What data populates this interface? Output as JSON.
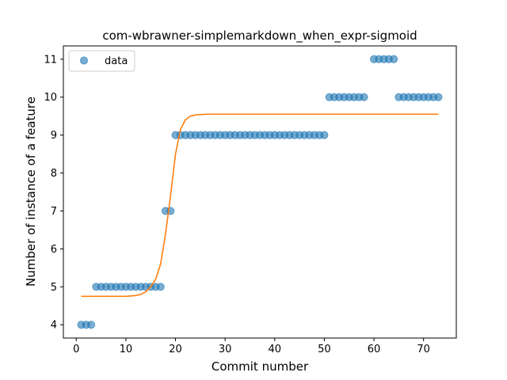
{
  "chart_data": {
    "type": "scatter",
    "title": "com-wbrawner-simplemarkdown_when_expr-sigmoid",
    "xlabel": "Commit number",
    "ylabel": "Number of instance of a feature",
    "xlim": [
      -2.6,
      76.6
    ],
    "ylim": [
      3.65,
      11.35
    ],
    "xticks": [
      0,
      10,
      20,
      30,
      40,
      50,
      60,
      70
    ],
    "yticks": [
      4,
      5,
      6,
      7,
      8,
      9,
      10,
      11
    ],
    "grid": false,
    "legend": {
      "placement": "top-left",
      "entries": [
        "data"
      ]
    },
    "colors": {
      "data": "#1f77b4",
      "fit": "#ff7f0e"
    },
    "series": [
      {
        "name": "data",
        "kind": "scatter",
        "x": [
          1,
          2,
          3,
          4,
          5,
          6,
          7,
          8,
          9,
          10,
          11,
          12,
          13,
          14,
          15,
          16,
          17,
          18,
          19,
          20,
          21,
          22,
          23,
          24,
          25,
          26,
          27,
          28,
          29,
          30,
          31,
          32,
          33,
          34,
          35,
          36,
          37,
          38,
          39,
          40,
          41,
          42,
          43,
          44,
          45,
          46,
          47,
          48,
          49,
          50,
          51,
          52,
          53,
          54,
          55,
          56,
          57,
          58,
          60,
          61,
          62,
          63,
          64,
          65,
          66,
          67,
          68,
          69,
          70,
          71,
          72,
          73
        ],
        "y": [
          4,
          4,
          4,
          5,
          5,
          5,
          5,
          5,
          5,
          5,
          5,
          5,
          5,
          5,
          5,
          5,
          5,
          7,
          7,
          9,
          9,
          9,
          9,
          9,
          9,
          9,
          9,
          9,
          9,
          9,
          9,
          9,
          9,
          9,
          9,
          9,
          9,
          9,
          9,
          9,
          9,
          9,
          9,
          9,
          9,
          9,
          9,
          9,
          9,
          9,
          10,
          10,
          10,
          10,
          10,
          10,
          10,
          10,
          11,
          11,
          11,
          11,
          11,
          10,
          10,
          10,
          10,
          10,
          10,
          10,
          10,
          10
        ]
      },
      {
        "kind": "line",
        "x": [
          1,
          2,
          3,
          4,
          5,
          6,
          7,
          8,
          9,
          10,
          11,
          12,
          13,
          14,
          15,
          16,
          17,
          18,
          19,
          20,
          21,
          22,
          23,
          24,
          25,
          26,
          28,
          30,
          35,
          40,
          45,
          50,
          55,
          60,
          65,
          70,
          73
        ],
        "y": [
          4.75,
          4.75,
          4.75,
          4.75,
          4.75,
          4.75,
          4.75,
          4.75,
          4.75,
          4.75,
          4.76,
          4.77,
          4.8,
          4.87,
          5.0,
          5.2,
          5.6,
          6.4,
          7.4,
          8.5,
          9.15,
          9.4,
          9.5,
          9.53,
          9.54,
          9.55,
          9.55,
          9.55,
          9.55,
          9.55,
          9.55,
          9.55,
          9.55,
          9.55,
          9.55,
          9.55,
          9.55
        ]
      }
    ]
  }
}
